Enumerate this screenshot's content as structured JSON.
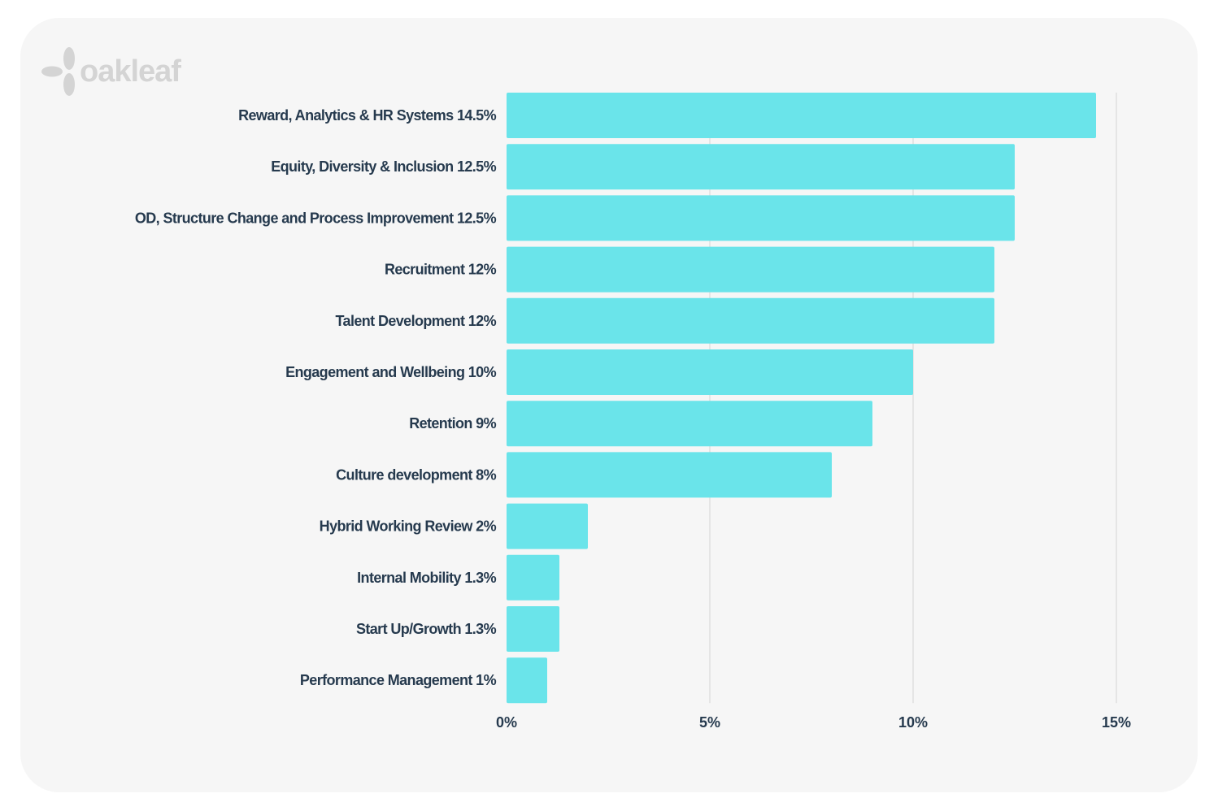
{
  "brand": {
    "logo_text": "oakleaf",
    "logo_icon": "leaf-icon"
  },
  "colors": {
    "card_background": "#f6f6f6",
    "bar": "#6ae4ea",
    "label": "#263a4e",
    "grid": "#d4d4d4",
    "logo": "#d4d4d4"
  },
  "chart_data": {
    "type": "bar",
    "orientation": "horizontal",
    "categories": [
      "Reward, Analytics & HR Systems 14.5%",
      "Equity, Diversity & Inclusion 12.5%",
      "OD, Structure Change and Process Improvement 12.5%",
      "Recruitment 12%",
      "Talent Development 12%",
      "Engagement and Wellbeing 10%",
      "Retention 9%",
      "Culture development 8%",
      "Hybrid Working Review 2%",
      "Internal Mobility 1.3%",
      "Start Up/Growth 1.3%",
      "Performance Management 1%"
    ],
    "values": [
      14.5,
      12.5,
      12.5,
      12,
      12,
      10,
      9,
      8,
      2,
      1.3,
      1.3,
      1
    ],
    "xlim": [
      0,
      15
    ],
    "x_ticks": [
      0,
      5,
      10,
      15
    ],
    "x_tick_labels": [
      "0%",
      "5%",
      "10%",
      "15%"
    ],
    "grid": true,
    "title": "",
    "xlabel": "",
    "ylabel": ""
  }
}
